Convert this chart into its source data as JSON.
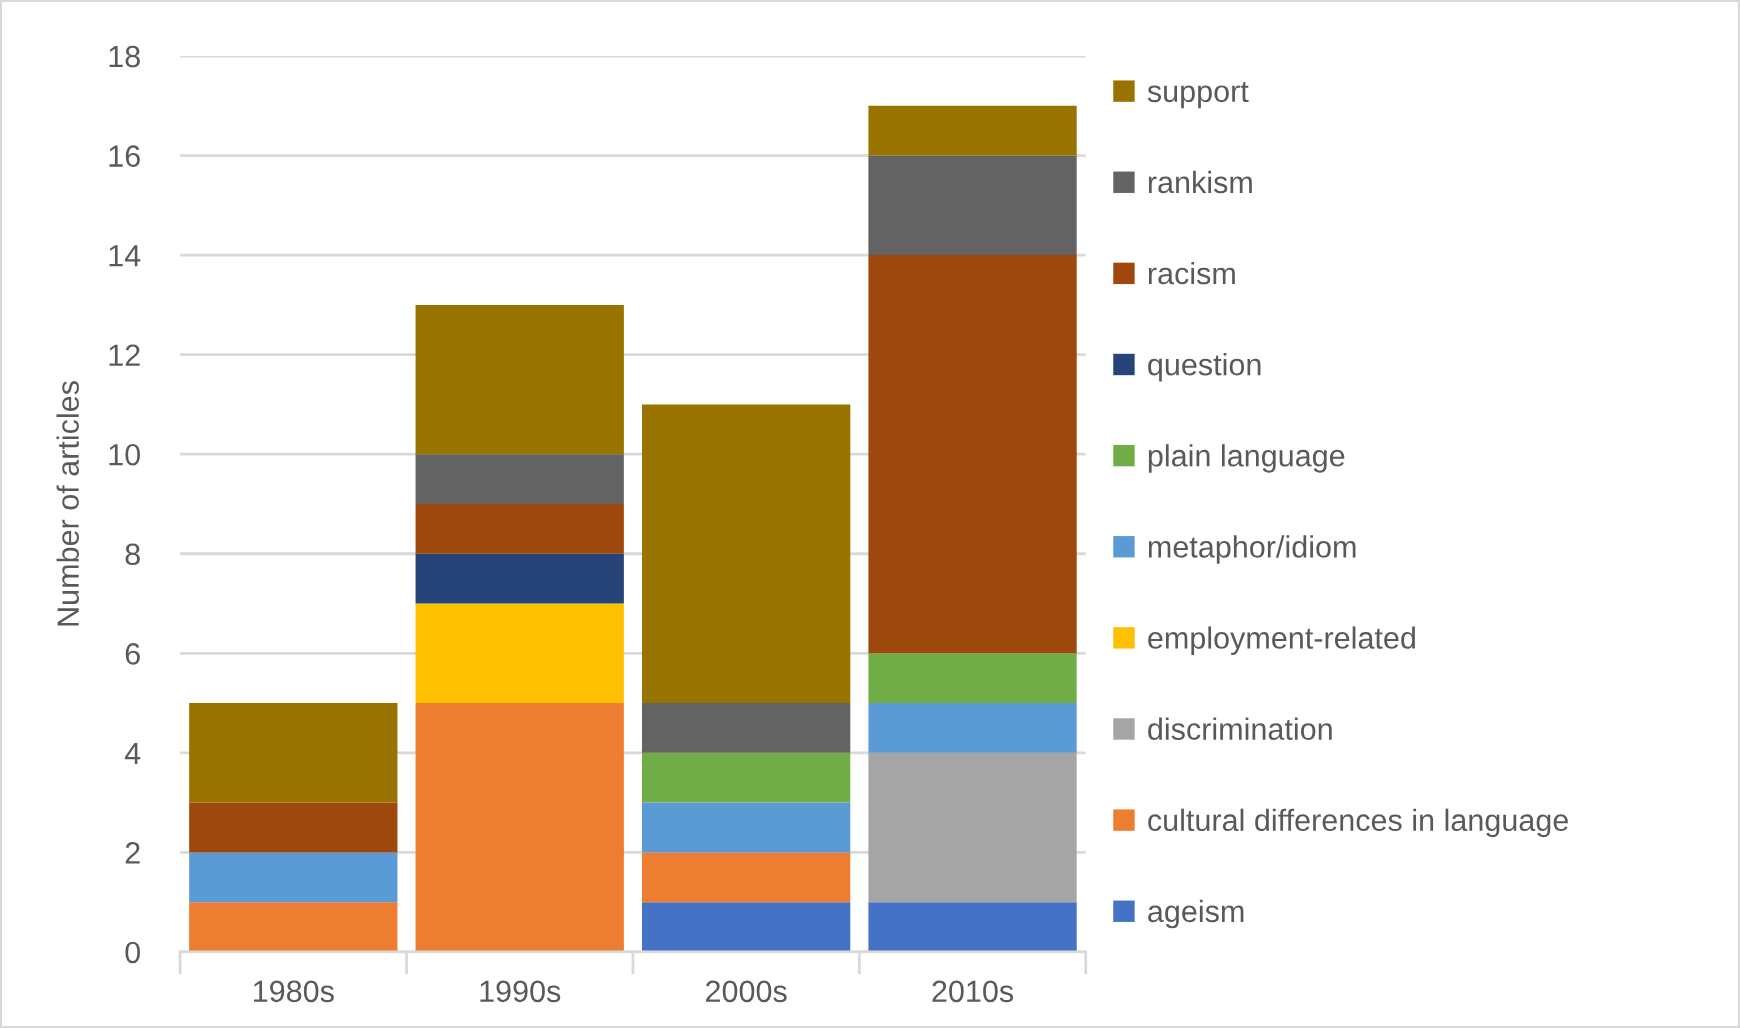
{
  "chart_data": {
    "type": "bar",
    "stacked": true,
    "ylabel": "Number of articles",
    "categories": [
      "1980s",
      "1990s",
      "2000s",
      "2010s"
    ],
    "series": [
      {
        "name": "ageism",
        "color": "#4472c4",
        "values": [
          0,
          0,
          1,
          1
        ]
      },
      {
        "name": "cultural differences in language",
        "color": "#ed7d31",
        "values": [
          1,
          5,
          1,
          0
        ]
      },
      {
        "name": "discrimination",
        "color": "#a5a5a5",
        "values": [
          0,
          0,
          0,
          3
        ]
      },
      {
        "name": "employment-related",
        "color": "#ffc000",
        "values": [
          0,
          2,
          0,
          0
        ]
      },
      {
        "name": "metaphor/idiom",
        "color": "#5b9bd5",
        "values": [
          1,
          0,
          1,
          1
        ]
      },
      {
        "name": "plain language",
        "color": "#70ad47",
        "values": [
          0,
          0,
          1,
          1
        ]
      },
      {
        "name": "question",
        "color": "#264478",
        "values": [
          0,
          1,
          0,
          0
        ]
      },
      {
        "name": "racism",
        "color": "#9e480e",
        "values": [
          1,
          1,
          0,
          8
        ]
      },
      {
        "name": "rankism",
        "color": "#636363",
        "values": [
          0,
          1,
          1,
          2
        ]
      },
      {
        "name": "support",
        "color": "#997300",
        "values": [
          2,
          3,
          6,
          1
        ]
      }
    ],
    "ylim": [
      0,
      18
    ],
    "yticks": [
      0,
      2,
      4,
      6,
      8,
      10,
      12,
      14,
      16,
      18
    ],
    "grid": "y",
    "legend": "right"
  }
}
